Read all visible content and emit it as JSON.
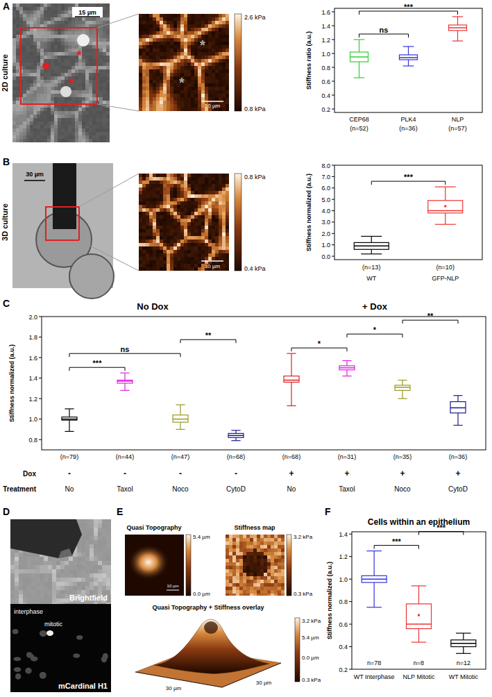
{
  "chart_data": [
    {
      "type": "box",
      "y_label": "Stiffness ratio (a.u.)",
      "categories": [
        "CEP68",
        "PLK4",
        "NLP"
      ],
      "n_labels": [
        "(n=52)",
        "(n=36)",
        "(n=57)"
      ],
      "colors": [
        "#33cc33",
        "#3333dd",
        "#ee3333"
      ],
      "boxes": [
        {
          "min": 0.65,
          "q1": 0.88,
          "median": 0.95,
          "q3": 1.02,
          "max": 1.2
        },
        {
          "min": 0.82,
          "q1": 0.91,
          "median": 0.94,
          "q3": 0.98,
          "max": 1.1
        },
        {
          "min": 1.18,
          "q1": 1.33,
          "median": 1.37,
          "q3": 1.41,
          "max": 1.53
        }
      ],
      "ylim": [
        0.15,
        1.65
      ],
      "yticks": [
        0.2,
        0.4,
        0.6,
        0.8,
        {
          "value": 1,
          "label": "1.0"
        },
        1.2,
        1.4,
        1.6
      ],
      "significance": [
        {
          "from": 0,
          "to": 1,
          "label": "ns"
        },
        {
          "from": 0,
          "to": 2,
          "label": "***"
        }
      ]
    },
    {
      "type": "box",
      "y_label": "Stiffness normalized (a.u.)",
      "categories": [
        "WT",
        "GFP-NLP"
      ],
      "n_labels": [
        "(n=13)",
        "(n=10)"
      ],
      "colors": [
        "#000000",
        "#ee3333"
      ],
      "boxes": [
        {
          "min": 0.2,
          "q1": 0.6,
          "median": 0.9,
          "q3": 1.2,
          "max": 1.75
        },
        {
          "min": 2.8,
          "q1": 3.8,
          "median": 4.0,
          "q3": 4.9,
          "max": 6.1,
          "mean": 4.4
        }
      ],
      "ylim": [
        -0.3,
        8
      ],
      "yticks": [
        {
          "value": 0,
          "label": "0.0"
        },
        {
          "value": 1,
          "label": "1.0"
        },
        {
          "value": 2,
          "label": "2.0"
        },
        {
          "value": 3,
          "label": "3.0"
        },
        {
          "value": 4,
          "label": "4.0"
        },
        {
          "value": 5,
          "label": "5.0"
        },
        {
          "value": 6,
          "label": "6.0"
        },
        {
          "value": 7,
          "label": "7.0"
        },
        {
          "value": 8,
          "label": "8.0"
        }
      ],
      "significance": [
        {
          "from": 0,
          "to": 1,
          "label": "***"
        }
      ]
    },
    {
      "type": "box",
      "y_label": "Stiffness normalized (a.u.)",
      "subtitles": [
        "No Dox",
        "+ Dox"
      ],
      "row_labels": [
        "Dox",
        "Treatment"
      ],
      "dox": [
        "-",
        "-",
        "-",
        "-",
        "+",
        "+",
        "+",
        "+"
      ],
      "categories": [
        "No",
        "Taxol",
        "Noco",
        "CytoD",
        "No",
        "Taxol",
        "Noco",
        "CytoD"
      ],
      "n_labels": [
        "(n=79)",
        "(n=44)",
        "(n=47)",
        "(n=68)",
        "(n=68)",
        "(n=31)",
        "(n=35)",
        "(n=36)"
      ],
      "colors": [
        "#000000",
        "#e020e0",
        "#9a9a20",
        "#1a1a90",
        "#e02020",
        "#e020e0",
        "#9a9a20",
        "#1a1a90"
      ],
      "boxes": [
        {
          "min": 0.88,
          "q1": 0.99,
          "median": 1.0,
          "q3": 1.02,
          "max": 1.1
        },
        {
          "min": 1.28,
          "q1": 1.35,
          "median": 1.37,
          "q3": 1.38,
          "max": 1.45
        },
        {
          "min": 0.9,
          "q1": 0.97,
          "median": 1.0,
          "q3": 1.04,
          "max": 1.14
        },
        {
          "min": 0.79,
          "q1": 0.82,
          "median": 0.84,
          "q3": 0.86,
          "max": 0.89
        },
        {
          "min": 1.13,
          "q1": 1.36,
          "median": 1.38,
          "q3": 1.42,
          "max": 1.64
        },
        {
          "min": 1.42,
          "q1": 1.48,
          "median": 1.5,
          "q3": 1.52,
          "max": 1.57
        },
        {
          "min": 1.2,
          "q1": 1.28,
          "median": 1.31,
          "q3": 1.33,
          "max": 1.38
        },
        {
          "min": 0.94,
          "q1": 1.06,
          "median": 1.11,
          "q3": 1.17,
          "max": 1.23
        }
      ],
      "ylim": [
        0.7,
        2
      ],
      "yticks": [
        0.8,
        {
          "value": 1,
          "label": "1.0"
        },
        1.2,
        1.4,
        1.6,
        1.8,
        {
          "value": 2,
          "label": "2.0"
        }
      ],
      "significance": [
        {
          "from": 0,
          "to": 1,
          "label": "***"
        },
        {
          "from": 0,
          "to": 2,
          "label": "ns"
        },
        {
          "from": 2,
          "to": 3,
          "label": "**"
        },
        {
          "from": 4,
          "to": 5,
          "label": "*"
        },
        {
          "from": 5,
          "to": 6,
          "label": "*"
        },
        {
          "from": 6,
          "to": 7,
          "label": "**"
        }
      ]
    },
    {
      "type": "box",
      "title": "Cells within an epithelium",
      "y_label": "Stiffness normalized (a.u.)",
      "categories": [
        "WT Interphase",
        "NLP Mitotic",
        "WT Mitotic"
      ],
      "n_labels": [
        "n=78",
        "n=8",
        "n=12"
      ],
      "colors": [
        "#3333dd",
        "#ee3333",
        "#000000"
      ],
      "boxes": [
        {
          "min": 0.75,
          "q1": 0.97,
          "median": 1.0,
          "q3": 1.03,
          "max": 1.25
        },
        {
          "min": 0.44,
          "q1": 0.56,
          "median": 0.6,
          "q3": 0.78,
          "max": 0.94,
          "mean": 0.68
        },
        {
          "min": 0.34,
          "q1": 0.4,
          "median": 0.43,
          "q3": 0.46,
          "max": 0.52
        }
      ],
      "ylim": [
        0.2,
        1.42
      ],
      "yticks": [
        0.2,
        0.4,
        0.6,
        0.8,
        {
          "value": 1,
          "label": "1.0"
        },
        1.2,
        1.4
      ],
      "significance": [
        {
          "from": 0,
          "to": 1,
          "label": "***"
        },
        {
          "from": 1,
          "to": 2,
          "label": "***"
        }
      ]
    }
  ],
  "figure": {
    "panel_labels": [
      "A",
      "B",
      "C",
      "D",
      "E",
      "F"
    ],
    "a": {
      "row_label": "2D culture",
      "scale_image": "15 µm",
      "scale_map": "10 µm",
      "cell_mark": "*",
      "colorbar": [
        "2.6 kPa",
        "0.8 kPa"
      ]
    },
    "b": {
      "row_label": "3D culture",
      "scale_image": "30 µm",
      "scale_map": "10 µm",
      "colorbar": [
        "0.8 kPa",
        "0.4 kPa"
      ]
    },
    "d": {
      "brightfield": "Brightfield",
      "fluorescence": "mCardinal H1",
      "interphase": "interphase",
      "mitotic": "mitotic"
    },
    "e": {
      "topography_title": "Quasi Topography",
      "topography_scale": "10 µm",
      "topography_colorbar": [
        "5.4 µm",
        "0.0 µm"
      ],
      "stiffness_title": "Stiffness map",
      "stiffness_colorbar": [
        "3.2 kPa",
        "0.3 kPa"
      ],
      "overlay_title": "Quasi Topography + Stiffness overlay",
      "overlay_axes": [
        "30 µm",
        "30 µm"
      ],
      "overlay_colorbar": [
        "3.2 kPa",
        "5.4 µm",
        "0.0 µm",
        "0.3 kPa"
      ]
    }
  }
}
